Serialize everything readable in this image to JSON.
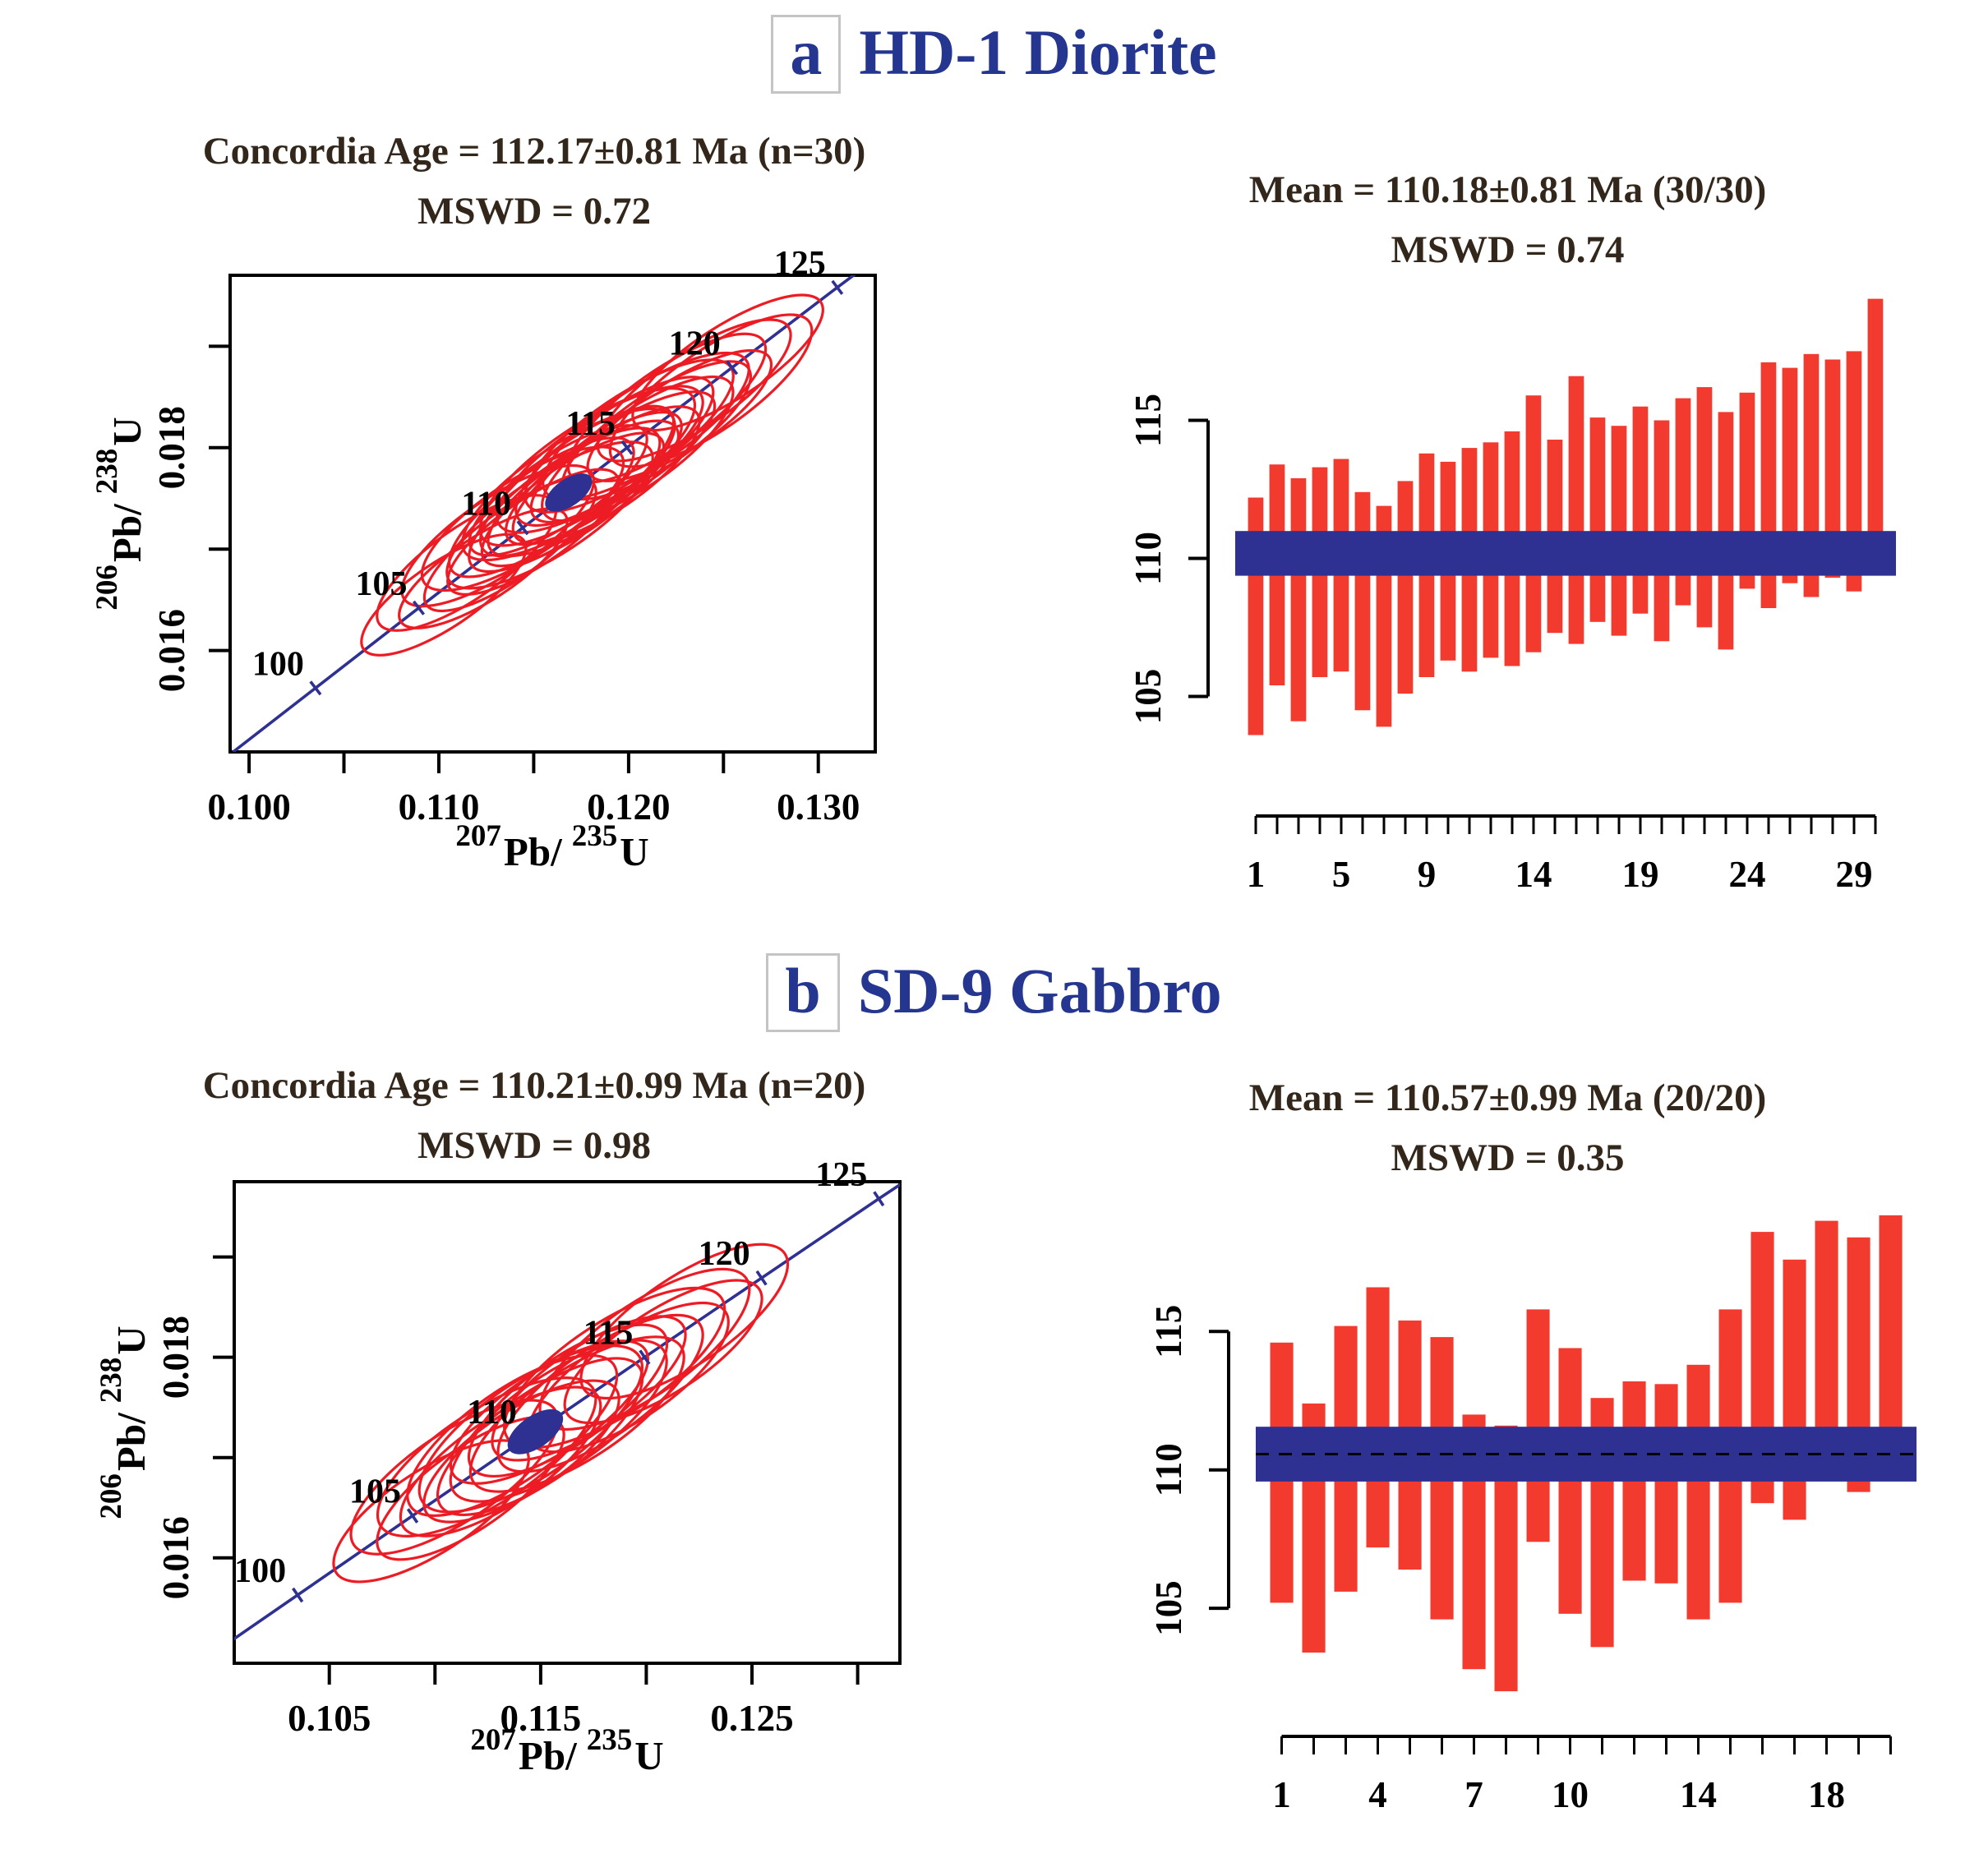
{
  "colors": {
    "red": "#ed1c24",
    "bar_red": "#f23a2e",
    "navy": "#2e3192",
    "header_blue": "#24368f",
    "title": "#33271b",
    "axis": "#000000",
    "letter_box_border": "#c4c4c4"
  },
  "headers": [
    {
      "letter": "a",
      "title": "HD-1 Diorite"
    },
    {
      "letter": "b",
      "title": "SD-9 Gabbro"
    }
  ],
  "chart_data": [
    {
      "id": "concordia-a",
      "type": "scatter",
      "subtype": "concordia-ellipse-plot",
      "title1": "Concordia Age = 112.17±0.81 Ma (n=30)",
      "title2": "MSWD = 0.72",
      "xlabel": {
        "sup1": "207",
        "base1": "Pb/",
        "sup2": "235",
        "base2": "U"
      },
      "ylabel": {
        "sup1": "206",
        "base1": "Pb/",
        "sup2": "238",
        "base2": "U"
      },
      "xlim": [
        0.099,
        0.133
      ],
      "ylim": [
        0.015,
        0.0197
      ],
      "xticks": [
        {
          "v": 0.1,
          "label": "0.100"
        },
        {
          "v": 0.105,
          "label": ""
        },
        {
          "v": 0.11,
          "label": "0.110"
        },
        {
          "v": 0.115,
          "label": ""
        },
        {
          "v": 0.12,
          "label": "0.120"
        },
        {
          "v": 0.125,
          "label": ""
        },
        {
          "v": 0.13,
          "label": "0.130"
        }
      ],
      "yticks": [
        {
          "v": 0.016,
          "label": "0.016"
        },
        {
          "v": 0.017,
          "label": ""
        },
        {
          "v": 0.018,
          "label": "0.018"
        },
        {
          "v": 0.019,
          "label": ""
        }
      ],
      "concordia_curve": [
        [
          96,
          0.09916,
          0.015
        ],
        [
          100,
          0.1035,
          0.01563
        ],
        [
          105,
          0.10894,
          0.01642
        ],
        [
          110,
          0.11442,
          0.01721
        ],
        [
          115,
          0.11992,
          0.018
        ],
        [
          120,
          0.12545,
          0.01879
        ],
        [
          125,
          0.131,
          0.01958
        ],
        [
          128,
          0.13435,
          0.02005
        ]
      ],
      "age_ticks": [
        100,
        105,
        110,
        115,
        120,
        125
      ],
      "ellipses": [
        [
          106.2,
          -6e-05,
          0.15,
          0.05,
          -34
        ],
        [
          107.3,
          8e-05,
          0.165,
          0.055,
          -35
        ],
        [
          108.1,
          -0.0001,
          0.152,
          0.049,
          -33
        ],
        [
          108.8,
          0.00011,
          0.175,
          0.058,
          -34
        ],
        [
          109.4,
          -7e-05,
          0.16,
          0.052,
          -36
        ],
        [
          110.0,
          9e-05,
          0.182,
          0.06,
          -33
        ],
        [
          110.5,
          -0.00012,
          0.156,
          0.051,
          -34
        ],
        [
          110.9,
          6e-05,
          0.17,
          0.056,
          -35
        ],
        [
          111.3,
          -8e-05,
          0.186,
          0.061,
          -33
        ],
        [
          111.7,
          0.0001,
          0.162,
          0.053,
          -34
        ],
        [
          112.0,
          -4e-05,
          0.176,
          0.057,
          -35
        ],
        [
          112.2,
          8e-05,
          0.192,
          0.063,
          -33
        ],
        [
          112.4,
          -0.0001,
          0.166,
          0.054,
          -34
        ],
        [
          112.6,
          5e-05,
          0.18,
          0.059,
          -36
        ],
        [
          112.9,
          -7e-05,
          0.172,
          0.056,
          -33
        ],
        [
          113.1,
          0.00011,
          0.196,
          0.064,
          -34
        ],
        [
          113.4,
          -5e-05,
          0.162,
          0.053,
          -35
        ],
        [
          113.7,
          9e-05,
          0.186,
          0.061,
          -33
        ],
        [
          114.0,
          -0.00011,
          0.17,
          0.056,
          -34
        ],
        [
          114.4,
          6e-05,
          0.182,
          0.059,
          -35
        ],
        [
          114.8,
          -6e-05,
          0.166,
          0.054,
          -33
        ],
        [
          115.1,
          0.0001,
          0.19,
          0.062,
          -34
        ],
        [
          115.5,
          -9e-05,
          0.176,
          0.058,
          -35
        ],
        [
          115.9,
          7e-05,
          0.186,
          0.061,
          -33
        ],
        [
          116.4,
          -5e-05,
          0.172,
          0.056,
          -34
        ],
        [
          116.9,
          9e-05,
          0.182,
          0.059,
          -35
        ],
        [
          117.5,
          -8e-05,
          0.166,
          0.054,
          -33
        ],
        [
          118.2,
          6e-05,
          0.176,
          0.058,
          -34
        ],
        [
          119.0,
          -7e-05,
          0.186,
          0.061,
          -35
        ],
        [
          119.8,
          8e-05,
          0.172,
          0.056,
          -33
        ]
      ],
      "concordia_age_ellipse": [
        112.2,
        0,
        0.042,
        0.021,
        -35
      ]
    },
    {
      "id": "mean-a",
      "type": "bar",
      "subtype": "weighted-mean-error-bars",
      "title1": "Mean = 110.18±0.81 Ma (30/30)",
      "title2": "MSWD = 0.74",
      "ylim": [
        101.8,
        120.4
      ],
      "yticks": [
        {
          "v": 105,
          "label": "105"
        },
        {
          "v": 110,
          "label": "110"
        },
        {
          "v": 115,
          "label": "115"
        }
      ],
      "band": [
        109.37,
        110.99
      ],
      "mean_line": null,
      "bars": [
        [
          103.6,
          112.2
        ],
        [
          105.4,
          113.4
        ],
        [
          104.1,
          112.9
        ],
        [
          105.7,
          113.3
        ],
        [
          105.9,
          113.6
        ],
        [
          104.5,
          112.4
        ],
        [
          103.9,
          111.9
        ],
        [
          105.1,
          112.8
        ],
        [
          105.7,
          113.8
        ],
        [
          106.3,
          113.5
        ],
        [
          105.9,
          114.0
        ],
        [
          106.4,
          114.2
        ],
        [
          106.1,
          114.6
        ],
        [
          106.6,
          115.9
        ],
        [
          107.3,
          114.3
        ],
        [
          106.9,
          116.6
        ],
        [
          107.7,
          115.1
        ],
        [
          107.2,
          114.8
        ],
        [
          108.0,
          115.5
        ],
        [
          107.0,
          115.0
        ],
        [
          108.3,
          115.8
        ],
        [
          107.5,
          116.2
        ],
        [
          106.7,
          115.3
        ],
        [
          108.9,
          116.0
        ],
        [
          108.2,
          117.1
        ],
        [
          109.1,
          116.9
        ],
        [
          108.6,
          117.4
        ],
        [
          109.3,
          117.2
        ],
        [
          108.8,
          117.5
        ],
        [
          110.2,
          119.4
        ]
      ],
      "xlabels": [
        {
          "slot": 0,
          "label": "1"
        },
        {
          "slot": 4,
          "label": "5"
        },
        {
          "slot": 8,
          "label": "9"
        },
        {
          "slot": 13,
          "label": "14"
        },
        {
          "slot": 18,
          "label": "19"
        },
        {
          "slot": 23,
          "label": "24"
        },
        {
          "slot": 28,
          "label": "29"
        }
      ]
    },
    {
      "id": "concordia-b",
      "type": "scatter",
      "subtype": "concordia-ellipse-plot",
      "title1": "Concordia Age = 110.21±0.99 Ma (n=20)",
      "title2": "MSWD = 0.98",
      "xlabel": {
        "sup1": "207",
        "base1": "Pb/",
        "sup2": "235",
        "base2": "U"
      },
      "ylabel": {
        "sup1": "206",
        "base1": "Pb/",
        "sup2": "238",
        "base2": "U"
      },
      "xlim": [
        0.1005,
        0.132
      ],
      "ylim": [
        0.01495,
        0.01975
      ],
      "xticks": [
        {
          "v": 0.105,
          "label": "0.105"
        },
        {
          "v": 0.11,
          "label": ""
        },
        {
          "v": 0.115,
          "label": "0.115"
        },
        {
          "v": 0.12,
          "label": ""
        },
        {
          "v": 0.125,
          "label": "0.125"
        },
        {
          "v": 0.13,
          "label": ""
        }
      ],
      "yticks": [
        {
          "v": 0.016,
          "label": "0.016"
        },
        {
          "v": 0.017,
          "label": ""
        },
        {
          "v": 0.018,
          "label": "0.018"
        },
        {
          "v": 0.019,
          "label": ""
        }
      ],
      "concordia_curve": [
        [
          96,
          0.09916,
          0.015
        ],
        [
          100,
          0.1035,
          0.01563
        ],
        [
          105,
          0.10894,
          0.01642
        ],
        [
          110,
          0.11442,
          0.01721
        ],
        [
          115,
          0.11992,
          0.018
        ],
        [
          120,
          0.12545,
          0.01879
        ],
        [
          125,
          0.131,
          0.01958
        ],
        [
          128,
          0.13435,
          0.02005
        ]
      ],
      "age_ticks": [
        100,
        105,
        110,
        115,
        120,
        125
      ],
      "ellipses": [
        [
          105.8,
          -8e-05,
          0.17,
          0.062,
          -33
        ],
        [
          106.8,
          0.0001,
          0.182,
          0.066,
          -34
        ],
        [
          107.5,
          -0.00012,
          0.166,
          0.06,
          -35
        ],
        [
          108.2,
          8e-05,
          0.19,
          0.07,
          -33
        ],
        [
          108.8,
          -6e-05,
          0.176,
          0.064,
          -34
        ],
        [
          109.3,
          0.00012,
          0.186,
          0.068,
          -35
        ],
        [
          109.7,
          -0.0001,
          0.17,
          0.062,
          -33
        ],
        [
          110.1,
          6e-05,
          0.196,
          0.072,
          -34
        ],
        [
          110.5,
          -8e-05,
          0.182,
          0.066,
          -35
        ],
        [
          110.9,
          0.0001,
          0.172,
          0.062,
          -33
        ],
        [
          111.3,
          -5e-05,
          0.19,
          0.07,
          -34
        ],
        [
          111.7,
          9e-05,
          0.176,
          0.064,
          -35
        ],
        [
          112.1,
          -0.00011,
          0.186,
          0.068,
          -33
        ],
        [
          112.6,
          7e-05,
          0.17,
          0.062,
          -34
        ],
        [
          113.1,
          -6e-05,
          0.182,
          0.066,
          -35
        ],
        [
          113.7,
          0.0001,
          0.192,
          0.07,
          -33
        ],
        [
          114.3,
          -9e-05,
          0.176,
          0.064,
          -34
        ],
        [
          115.0,
          8e-05,
          0.186,
          0.068,
          -35
        ],
        [
          115.8,
          -7e-05,
          0.172,
          0.062,
          -33
        ],
        [
          116.7,
          9e-05,
          0.182,
          0.066,
          -34
        ]
      ],
      "concordia_age_ellipse": [
        110.3,
        0,
        0.048,
        0.024,
        -35
      ]
    },
    {
      "id": "mean-b",
      "type": "bar",
      "subtype": "weighted-mean-error-bars",
      "title1": "Mean = 110.57±0.99 Ma (20/20)",
      "title2": "MSWD = 0.35",
      "ylim": [
        101.5,
        120.8
      ],
      "yticks": [
        {
          "v": 105,
          "label": "105"
        },
        {
          "v": 110,
          "label": "110"
        },
        {
          "v": 115,
          "label": "115"
        }
      ],
      "band": [
        109.58,
        111.56
      ],
      "mean_line": 110.57,
      "bars": [
        [
          105.2,
          114.6
        ],
        [
          103.4,
          112.4
        ],
        [
          105.6,
          115.2
        ],
        [
          107.2,
          116.6
        ],
        [
          106.4,
          115.4
        ],
        [
          104.6,
          114.8
        ],
        [
          102.8,
          112.0
        ],
        [
          102.0,
          111.6
        ],
        [
          107.4,
          115.8
        ],
        [
          104.8,
          114.4
        ],
        [
          103.6,
          112.6
        ],
        [
          106.0,
          113.2
        ],
        [
          105.9,
          113.1
        ],
        [
          104.6,
          113.8
        ],
        [
          105.2,
          115.8
        ],
        [
          108.8,
          118.6
        ],
        [
          108.2,
          117.6
        ],
        [
          109.6,
          119.0
        ],
        [
          109.2,
          118.4
        ],
        [
          109.8,
          119.2
        ]
      ],
      "xlabels": [
        {
          "slot": 0,
          "label": "1"
        },
        {
          "slot": 3,
          "label": "4"
        },
        {
          "slot": 6,
          "label": "7"
        },
        {
          "slot": 9,
          "label": "10"
        },
        {
          "slot": 13,
          "label": "14"
        },
        {
          "slot": 17,
          "label": "18"
        }
      ]
    }
  ]
}
